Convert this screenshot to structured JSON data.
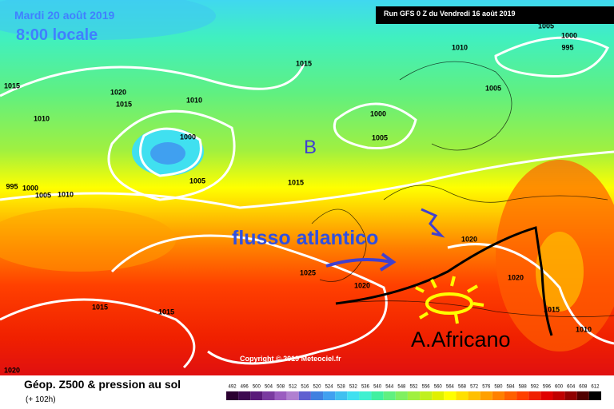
{
  "header": {
    "date": "Mardi 20 août 2019",
    "time": "8:00 locale",
    "run": "Run GFS 0 Z du Vendredi 16 août 2019"
  },
  "isobar_labels": [
    1005,
    1000,
    995,
    1010,
    1015,
    1015,
    1020,
    1015,
    1010,
    1005,
    1010,
    1000,
    1000,
    1005,
    1005,
    1015,
    995,
    1000,
    1005,
    1010,
    1020,
    1025,
    1020,
    1020,
    1015,
    1015,
    1015,
    1010,
    1020
  ],
  "annotations": {
    "low": "B",
    "flow": "flusso atlantico",
    "high": "A.Africano"
  },
  "copyright": "Copyright © 2019 Meteociel.fr",
  "footer": {
    "title": "Géop. Z500 & pression au sol",
    "lead": "(+ 102h)"
  },
  "scale": {
    "values": [
      492,
      496,
      500,
      504,
      508,
      512,
      516,
      520,
      524,
      528,
      532,
      536,
      540,
      544,
      548,
      552,
      556,
      560,
      564,
      568,
      572,
      576,
      580,
      584,
      588,
      592,
      596,
      600,
      604,
      608,
      612
    ],
    "colors": [
      "#2a0030",
      "#3d0a50",
      "#5a1a7a",
      "#7a3aa0",
      "#9a5cc0",
      "#b080d0",
      "#6060d0",
      "#4080e0",
      "#40a0f0",
      "#40c0f0",
      "#40e0f0",
      "#40f0d0",
      "#40f0a0",
      "#60f080",
      "#80f060",
      "#a0f040",
      "#c0f020",
      "#e0f000",
      "#ffff00",
      "#ffe000",
      "#ffc000",
      "#ffa000",
      "#ff8000",
      "#ff6000",
      "#ff4000",
      "#f02000",
      "#e00000",
      "#c00000",
      "#900000",
      "#500000",
      "#000000"
    ]
  }
}
